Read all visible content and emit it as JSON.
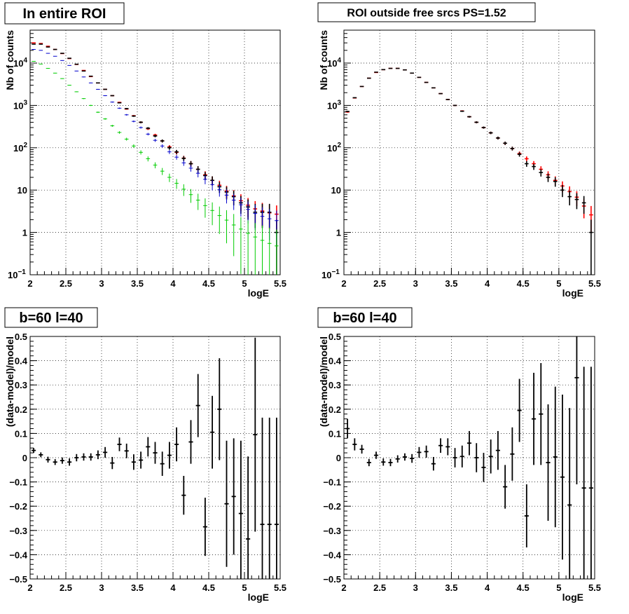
{
  "colors": {
    "data": "#000000",
    "model": "#ff0000",
    "blue": "#0000cc",
    "green": "#00cc00"
  },
  "chart_data": [
    {
      "type": "scatter",
      "title": "In entire ROI",
      "xlabel": "logE",
      "ylabel": "Nb of counts",
      "xlim": [
        2,
        5.5
      ],
      "ylim": [
        0.1,
        60000
      ],
      "yscale": "log",
      "grid": true,
      "x_ticks": [
        "2",
        "2.5",
        "3",
        "3.5",
        "4",
        "4.5",
        "5",
        "5.5"
      ],
      "y_ticks": [
        {
          "value": 0.1,
          "label": "10",
          "exp": "−1"
        },
        {
          "value": 1,
          "label": "1",
          "exp": ""
        },
        {
          "value": 10,
          "label": "10",
          "exp": ""
        },
        {
          "value": 100,
          "label": "10",
          "exp": "2"
        },
        {
          "value": 1000,
          "label": "10",
          "exp": "3"
        },
        {
          "value": 10000,
          "label": "10",
          "exp": "4"
        }
      ],
      "x": [
        2.05,
        2.15,
        2.25,
        2.35,
        2.45,
        2.55,
        2.65,
        2.75,
        2.85,
        2.95,
        3.05,
        3.15,
        3.25,
        3.35,
        3.45,
        3.55,
        3.65,
        3.75,
        3.85,
        3.95,
        4.05,
        4.15,
        4.25,
        4.35,
        4.45,
        4.55,
        4.65,
        4.75,
        4.85,
        4.95,
        5.05,
        5.15,
        5.25,
        5.35,
        5.45
      ],
      "series": [
        {
          "color_key": "model",
          "values": [
            30000,
            29000,
            25000,
            21000,
            16800,
            12800,
            9300,
            6700,
            4800,
            3400,
            2400,
            1700,
            1180,
            820,
            570,
            400,
            280,
            200,
            145,
            105,
            78,
            57,
            42,
            31,
            23,
            17,
            13,
            9.5,
            7.3,
            5.6,
            4.4,
            3.6,
            3.2,
            2.9,
            2.7
          ]
        },
        {
          "color_key": "data",
          "values": [
            28000,
            28000,
            24000,
            21000,
            17000,
            13000,
            9400,
            6500,
            4900,
            3400,
            2400,
            1700,
            1150,
            840,
            560,
            400,
            290,
            190,
            145,
            100,
            80,
            56,
            42,
            31,
            22,
            17,
            12,
            9,
            7,
            5,
            4,
            3,
            3,
            3,
            1
          ]
        },
        {
          "color_key": "blue",
          "values": [
            21000,
            20000,
            17000,
            14500,
            11500,
            8800,
            6500,
            4700,
            3400,
            2400,
            1700,
            1200,
            860,
            600,
            420,
            300,
            210,
            150,
            110,
            80,
            60,
            44,
            33,
            25,
            18,
            13.5,
            10.2,
            7.6,
            5.8,
            4.5,
            3.5,
            2.8,
            2.4,
            2.1,
            1.9
          ]
        },
        {
          "color_key": "green",
          "values": [
            11000,
            9500,
            7500,
            5800,
            4300,
            3000,
            2100,
            1450,
            1000,
            690,
            480,
            330,
            230,
            160,
            110,
            78,
            55,
            39,
            28,
            20,
            14.5,
            10.5,
            7.8,
            5.8,
            4.3,
            3.3,
            2.5,
            1.95,
            1.5,
            1.2,
            0.95,
            0.78,
            0.65,
            0.55,
            0.48
          ]
        }
      ]
    },
    {
      "type": "scatter",
      "title": "ROI outside free srcs PS=1.52",
      "xlabel": "logE",
      "ylabel": "Nb of counts",
      "xlim": [
        2,
        5.5
      ],
      "ylim": [
        0.1,
        60000
      ],
      "yscale": "log",
      "grid": true,
      "x_ticks": [
        "2",
        "2.5",
        "3",
        "3.5",
        "4",
        "4.5",
        "5",
        "5.5"
      ],
      "y_ticks": [
        {
          "value": 0.1,
          "label": "10",
          "exp": "−1"
        },
        {
          "value": 1,
          "label": "1",
          "exp": ""
        },
        {
          "value": 10,
          "label": "10",
          "exp": ""
        },
        {
          "value": 100,
          "label": "10",
          "exp": "2"
        },
        {
          "value": 1000,
          "label": "10",
          "exp": "3"
        },
        {
          "value": 10000,
          "label": "10",
          "exp": "4"
        }
      ],
      "x": [
        2.05,
        2.15,
        2.25,
        2.35,
        2.45,
        2.55,
        2.65,
        2.75,
        2.85,
        2.95,
        3.05,
        3.15,
        3.25,
        3.35,
        3.45,
        3.55,
        3.65,
        3.75,
        3.85,
        3.95,
        4.05,
        4.15,
        4.25,
        4.35,
        4.45,
        4.55,
        4.65,
        4.75,
        4.85,
        4.95,
        5.05,
        5.15,
        5.25,
        5.35,
        5.45
      ],
      "series": [
        {
          "color_key": "model",
          "values": [
            700,
            1500,
            2800,
            4400,
            6000,
            7000,
            7500,
            7500,
            6900,
            5800,
            4600,
            3500,
            2600,
            1900,
            1380,
            1000,
            740,
            540,
            400,
            300,
            225,
            170,
            128,
            96,
            73,
            55,
            42,
            31,
            23,
            17,
            12.5,
            9.2,
            6.8,
            4.2,
            2.6
          ]
        },
        {
          "color_key": "data",
          "values": [
            720,
            1520,
            2800,
            4400,
            6100,
            7000,
            7500,
            7500,
            6900,
            5800,
            4600,
            3500,
            2600,
            1900,
            1380,
            1000,
            730,
            540,
            400,
            300,
            225,
            170,
            128,
            96,
            70,
            42,
            36,
            26,
            20,
            16,
            10,
            7,
            6,
            5,
            1
          ]
        }
      ]
    },
    {
      "type": "scatter",
      "title": "b=60 l=40",
      "xlabel": "logE",
      "ylabel": "(data-model)/model",
      "xlim": [
        2,
        5.5
      ],
      "ylim": [
        -0.5,
        0.5
      ],
      "grid": true,
      "x_ticks": [
        "2",
        "2.5",
        "3",
        "3.5",
        "4",
        "4.5",
        "5",
        "5.5"
      ],
      "y_ticks": [
        "−0.5",
        "−0.4",
        "−0.3",
        "−0.2",
        "−0.1",
        "0",
        "0.1",
        "0.2",
        "0.3",
        "0.4",
        "0.5"
      ],
      "x": [
        2.05,
        2.15,
        2.25,
        2.35,
        2.45,
        2.55,
        2.65,
        2.75,
        2.85,
        2.95,
        3.05,
        3.15,
        3.25,
        3.35,
        3.45,
        3.55,
        3.65,
        3.75,
        3.85,
        3.95,
        4.05,
        4.15,
        4.25,
        4.35,
        4.45,
        4.55,
        4.65,
        4.75,
        4.85,
        4.95,
        5.05,
        5.15,
        5.25,
        5.35,
        5.45
      ],
      "values": [
        0.03,
        0.012,
        -0.008,
        -0.018,
        -0.012,
        -0.018,
        0.0,
        0.003,
        0.003,
        0.012,
        0.022,
        -0.022,
        0.055,
        0.028,
        -0.018,
        -0.01,
        0.045,
        0.02,
        -0.025,
        0.01,
        0.055,
        -0.155,
        0.065,
        0.215,
        -0.285,
        0.105,
        0.2,
        -0.19,
        -0.16,
        -0.23,
        -0.335,
        0.095,
        -0.275,
        -0.275,
        -0.275
      ],
      "errors": [
        0.01,
        0.01,
        0.012,
        0.012,
        0.013,
        0.015,
        0.015,
        0.015,
        0.015,
        0.018,
        0.022,
        0.025,
        0.028,
        0.03,
        0.032,
        0.035,
        0.04,
        0.045,
        0.05,
        0.055,
        0.07,
        0.08,
        0.09,
        0.13,
        0.12,
        0.15,
        0.21,
        0.26,
        0.24,
        0.3,
        0.34,
        0.4,
        0.44,
        0.44,
        0.44
      ]
    },
    {
      "type": "scatter",
      "title": "b=60 l=40",
      "xlabel": "logE",
      "ylabel": "(data-model)/model",
      "xlim": [
        2,
        5.5
      ],
      "ylim": [
        -0.5,
        0.5
      ],
      "grid": true,
      "x_ticks": [
        "2",
        "2.5",
        "3",
        "3.5",
        "4",
        "4.5",
        "5",
        "5.5"
      ],
      "y_ticks": [
        "−0.5",
        "−0.4",
        "−0.3",
        "−0.2",
        "−0.1",
        "0",
        "0.1",
        "0.2",
        "0.3",
        "0.4",
        "0.5"
      ],
      "x": [
        2.05,
        2.15,
        2.25,
        2.35,
        2.45,
        2.55,
        2.65,
        2.75,
        2.85,
        2.95,
        3.05,
        3.15,
        3.25,
        3.35,
        3.45,
        3.55,
        3.65,
        3.75,
        3.85,
        3.95,
        4.05,
        4.15,
        4.25,
        4.35,
        4.45,
        4.55,
        4.65,
        4.75,
        4.85,
        4.95,
        5.05,
        5.15,
        5.25,
        5.35,
        5.45
      ],
      "values": [
        0.12,
        0.055,
        0.035,
        -0.02,
        0.01,
        -0.018,
        -0.02,
        -0.005,
        0.003,
        -0.003,
        0.022,
        0.025,
        -0.025,
        0.05,
        0.045,
        0.0,
        0.005,
        0.06,
        0.0,
        -0.04,
        0.005,
        0.03,
        -0.12,
        0.015,
        0.195,
        -0.24,
        0.16,
        0.18,
        -0.02,
        0.003,
        -0.08,
        -0.195,
        0.33,
        -0.125,
        -0.125
      ],
      "errors": [
        0.04,
        0.025,
        0.018,
        0.015,
        0.015,
        0.015,
        0.015,
        0.015,
        0.015,
        0.018,
        0.022,
        0.025,
        0.028,
        0.03,
        0.035,
        0.04,
        0.045,
        0.05,
        0.06,
        0.06,
        0.07,
        0.08,
        0.09,
        0.11,
        0.13,
        0.13,
        0.19,
        0.21,
        0.24,
        0.29,
        0.34,
        0.4,
        0.44,
        0.5,
        0.5
      ]
    }
  ]
}
